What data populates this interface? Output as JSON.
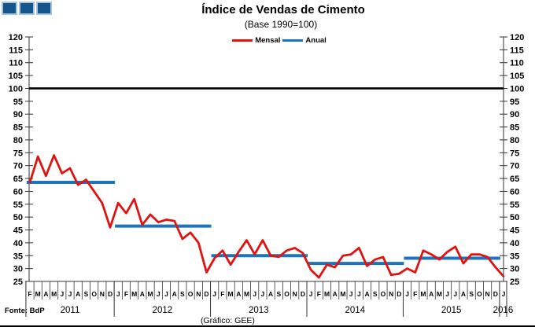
{
  "header": {
    "title": "Índice de Vendas de Cimento",
    "subtitle": "(Base 1990=100)"
  },
  "legend": [
    {
      "label": "Mensal",
      "color": "#e01310"
    },
    {
      "label": "Anual",
      "color": "#1c74be"
    }
  ],
  "footer": {
    "source": "Fonte: BdP",
    "credit": "(Gráfico: GEE)"
  },
  "chart_data": {
    "type": "line",
    "title": "Índice de Vendas de Cimento",
    "subtitle": "(Base 1990=100)",
    "ylim": [
      25,
      120
    ],
    "ytick_step": 5,
    "reference_line": 100,
    "legend_position": "top-center",
    "grid": false,
    "colors": {
      "mensal": "#e01310",
      "anual": "#1c74be",
      "reference": "#000000",
      "axis": "#333333"
    },
    "series_names": [
      "Mensal",
      "Anual"
    ],
    "years": [
      {
        "label": "2011",
        "months": [
          "F",
          "M",
          "A",
          "M",
          "J",
          "J",
          "A",
          "S",
          "O",
          "N",
          "D"
        ],
        "mensal": [
          63.5,
          73.5,
          66,
          74,
          67,
          69,
          62.5,
          64.5,
          60,
          55.5,
          46
        ]
      },
      {
        "label": "2012",
        "months": [
          "J",
          "F",
          "M",
          "A",
          "M",
          "J",
          "J",
          "A",
          "S",
          "O",
          "N",
          "D"
        ],
        "mensal": [
          55.5,
          51.5,
          57,
          47,
          51,
          48,
          49,
          48.5,
          41.5,
          44,
          40,
          28.5
        ]
      },
      {
        "label": "2013",
        "months": [
          "J",
          "F",
          "M",
          "A",
          "M",
          "J",
          "J",
          "A",
          "S",
          "O",
          "N",
          "D"
        ],
        "mensal": [
          34,
          37,
          31.5,
          36.5,
          41,
          35.5,
          41,
          35,
          34.5,
          37,
          38,
          36
        ]
      },
      {
        "label": "2014",
        "months": [
          "J",
          "F",
          "M",
          "A",
          "M",
          "J",
          "J",
          "A",
          "S",
          "O",
          "N",
          "D"
        ],
        "mensal": [
          29.5,
          26.5,
          31.5,
          30.5,
          35,
          35.5,
          38,
          31,
          33.5,
          34.5,
          27.5,
          28
        ]
      },
      {
        "label": "2015",
        "months": [
          "J",
          "F",
          "M",
          "A",
          "M",
          "J",
          "J",
          "A",
          "S",
          "O",
          "N",
          "D"
        ],
        "mensal": [
          30,
          28.5,
          37,
          35.5,
          33.5,
          36.5,
          38.5,
          32,
          35.5,
          35.5,
          34.5,
          30.5
        ]
      },
      {
        "label": "2016",
        "months": [
          "J"
        ],
        "mensal": [
          27
        ]
      }
    ],
    "anual": [
      {
        "year": "2011",
        "value": 63.5
      },
      {
        "year": "2012",
        "value": 46.5
      },
      {
        "year": "2013",
        "value": 35
      },
      {
        "year": "2014",
        "value": 32
      },
      {
        "year": "2015",
        "value": 34
      }
    ]
  }
}
